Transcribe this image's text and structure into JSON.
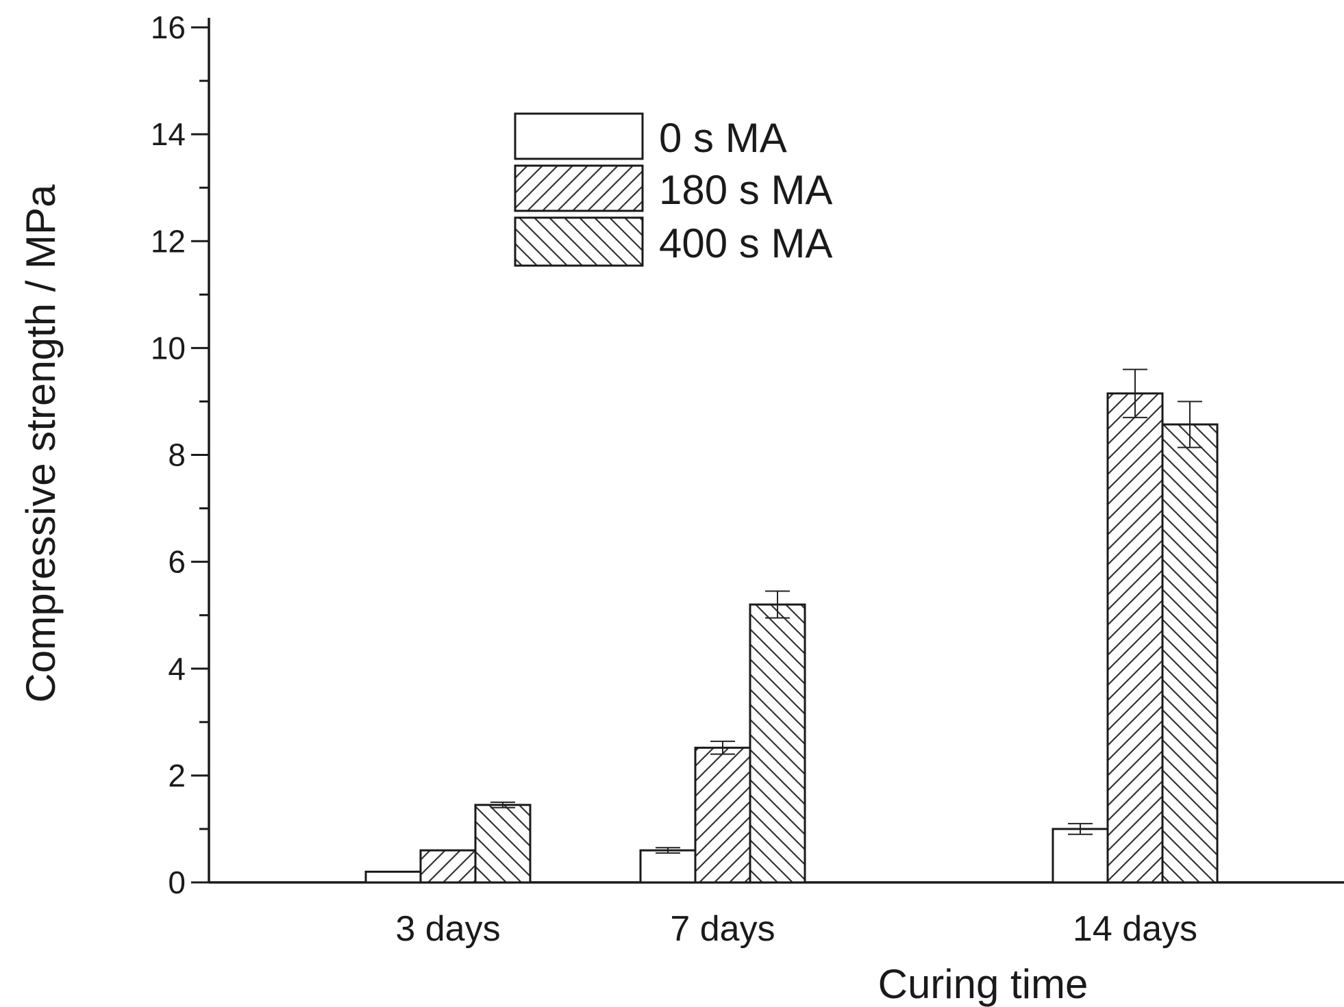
{
  "chart_data": {
    "type": "bar",
    "categories": [
      "3 days",
      "7 days",
      "14 days"
    ],
    "series": [
      {
        "name": "0 s MA",
        "values": [
          0.2,
          0.6,
          1.0
        ],
        "errors": [
          0.0,
          0.05,
          0.1
        ],
        "pattern": "none"
      },
      {
        "name": "180 s MA",
        "values": [
          0.6,
          2.52,
          9.15
        ],
        "errors": [
          0.0,
          0.12,
          0.45
        ],
        "pattern": "forward-hatch"
      },
      {
        "name": "400 s MA",
        "values": [
          1.45,
          5.2,
          8.57
        ],
        "errors": [
          0.05,
          0.25,
          0.43
        ],
        "pattern": "back-hatch"
      }
    ],
    "title": "",
    "xlabel": "Curing time",
    "ylabel": "Compressive strength / MPa",
    "ylim": [
      0,
      16
    ],
    "yticks": [
      "0",
      "2",
      "4",
      "6",
      "8",
      "10",
      "12",
      "14",
      "16"
    ],
    "grid": false,
    "legend_position": "top-center",
    "colors": {
      "axis": "#1a1a1a",
      "bar_fill": "#ffffff",
      "hatch": "#333333"
    }
  }
}
